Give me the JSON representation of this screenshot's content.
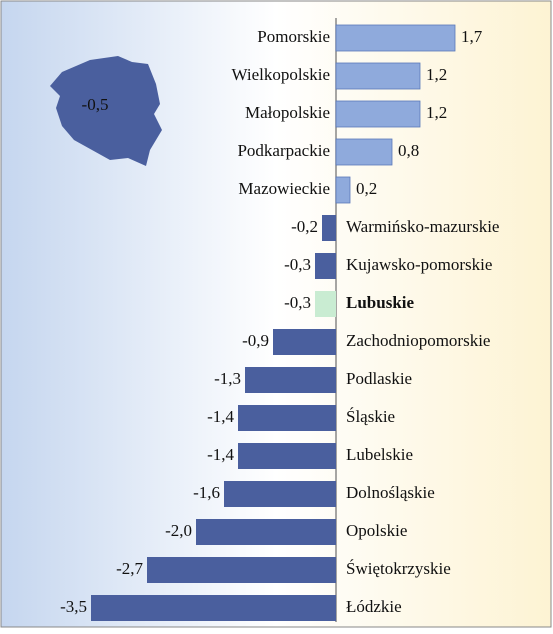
{
  "chart_data": {
    "type": "barh",
    "annotation": "-0,5",
    "categories": [
      "Pomorskie",
      "Wielkopolskie",
      "Małopolskie",
      "Podkarpackie",
      "Mazowieckie",
      "Warmińsko-mazurskie",
      "Kujawsko-pomorskie",
      "Lubuskie",
      "Zachodniopomorskie",
      "Podlaskie",
      "Śląskie",
      "Lubelskie",
      "Dolnośląskie",
      "Opolskie",
      "Świętokrzyskie",
      "Łódzkie"
    ],
    "values": [
      1.7,
      1.2,
      1.2,
      0.8,
      0.2,
      -0.2,
      -0.3,
      -0.3,
      -0.9,
      -1.3,
      -1.4,
      -1.4,
      -1.6,
      -2.0,
      -2.7,
      -3.5
    ],
    "value_labels": [
      "1,7",
      "1,2",
      "1,2",
      "0,8",
      "0,2",
      "-0,2",
      "-0,3",
      "-0,3",
      "-0,9",
      "-1,3",
      "-1,4",
      "-1,4",
      "-1,6",
      "-2,0",
      "-2,7",
      "-3,5"
    ],
    "positive_color": "#8faadc",
    "negative_color": "#4a5f9e",
    "highlight": "Lubuskie",
    "highlight_color": "#c9ecd2"
  }
}
